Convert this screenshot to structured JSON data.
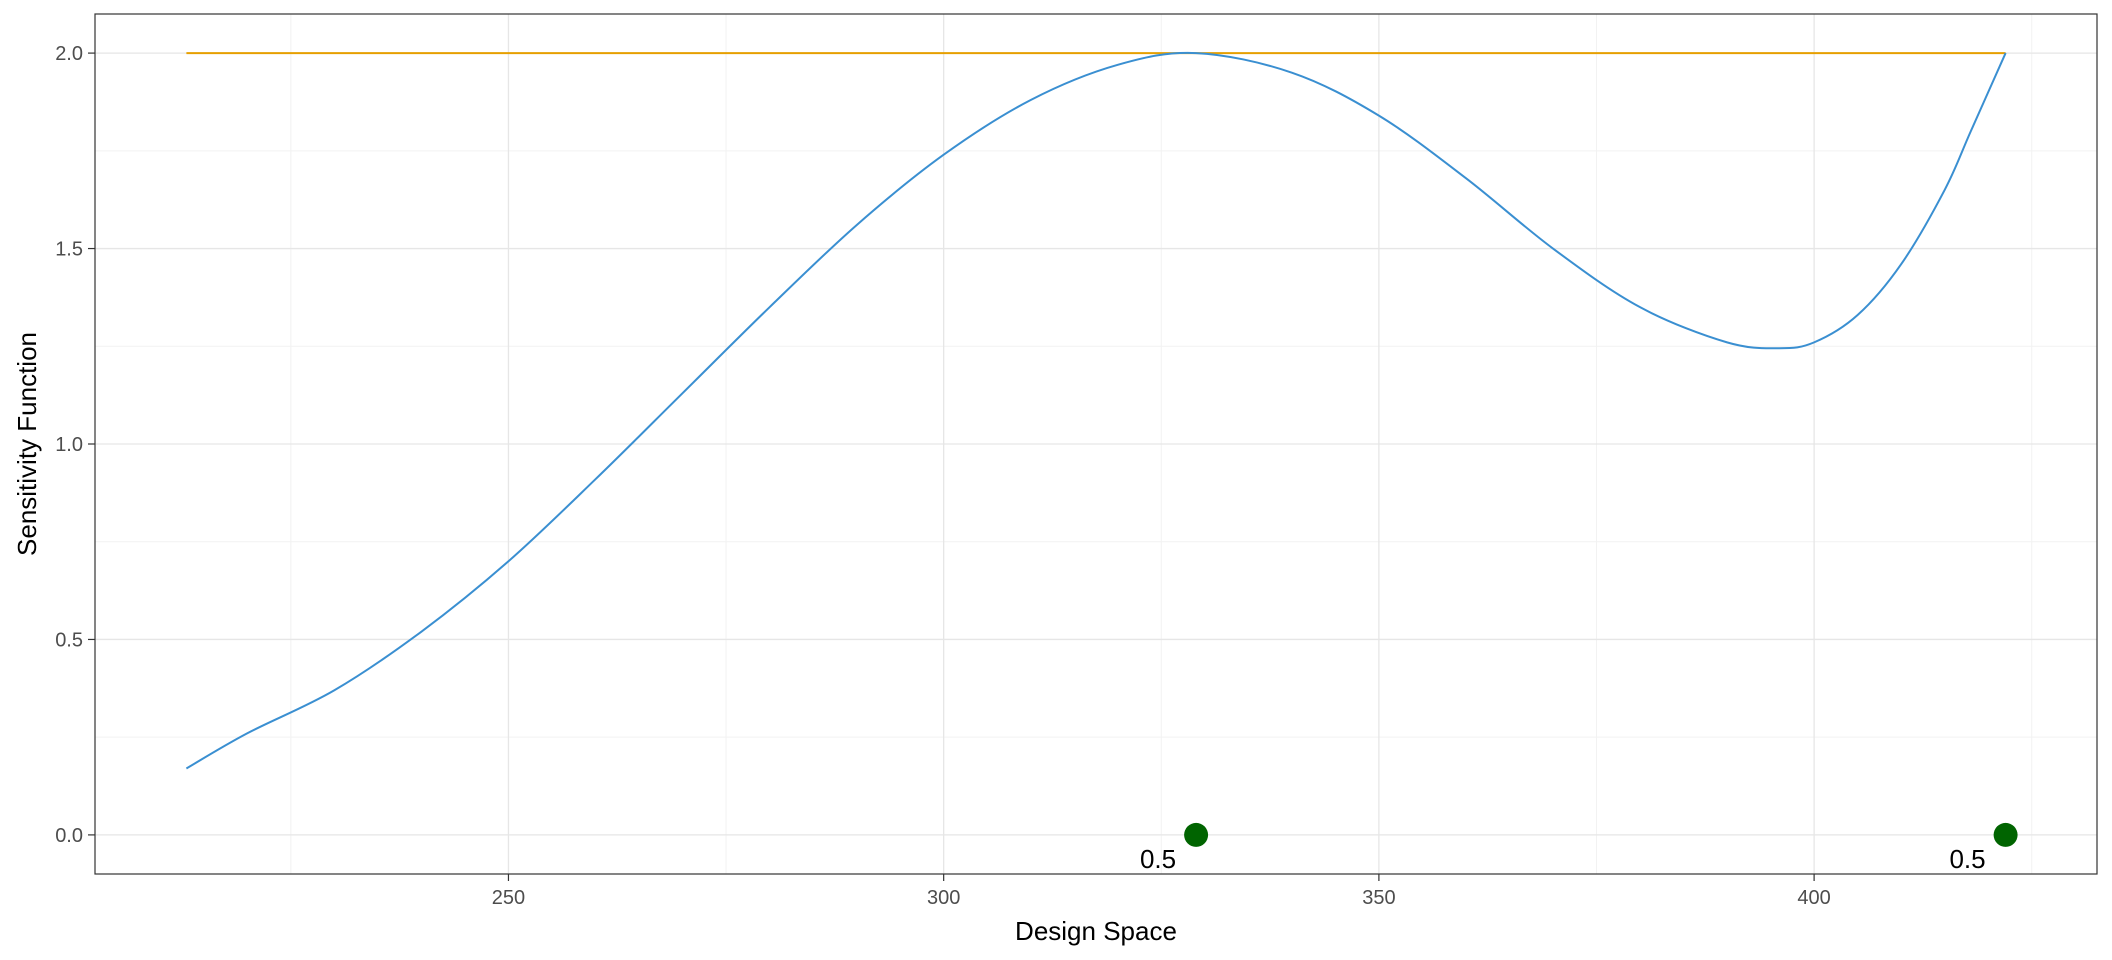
{
  "chart_data": {
    "type": "line",
    "title": "",
    "xlabel": "Design Space",
    "ylabel": "Sensitivity Function",
    "xlim": [
      202.5,
      432.5
    ],
    "ylim": [
      -0.1,
      2.1
    ],
    "x_ticks": [
      250,
      300,
      350,
      400
    ],
    "x_tick_labels": [
      "250",
      "300",
      "350",
      "400"
    ],
    "y_ticks": [
      0.0,
      0.5,
      1.0,
      1.5,
      2.0
    ],
    "y_tick_labels": [
      "0.0",
      "0.5",
      "1.0",
      "1.5",
      "2.0"
    ],
    "grid": true,
    "legend": "none",
    "reference_line": {
      "y": 2.0,
      "x_range": [
        213,
        422
      ],
      "color": "#e69f00"
    },
    "series": [
      {
        "color": "#3a8fd1",
        "x": [
          213,
          220,
          230,
          240,
          250,
          260,
          270,
          280,
          290,
          300,
          310,
          320,
          329,
          340,
          350,
          360,
          370,
          380,
          390,
          396,
          400,
          405,
          410,
          415,
          418,
          422
        ],
        "y": [
          0.17,
          0.26,
          0.37,
          0.52,
          0.7,
          0.91,
          1.13,
          1.35,
          1.56,
          1.74,
          1.88,
          1.97,
          2.0,
          1.95,
          1.84,
          1.68,
          1.5,
          1.35,
          1.26,
          1.245,
          1.26,
          1.33,
          1.46,
          1.65,
          1.8,
          2.0
        ]
      }
    ],
    "design_points": [
      {
        "x": 329,
        "y": 0.0,
        "label": "0.5"
      },
      {
        "x": 422,
        "y": 0.0,
        "label": "0.5"
      }
    ],
    "point_color": "#006400"
  }
}
